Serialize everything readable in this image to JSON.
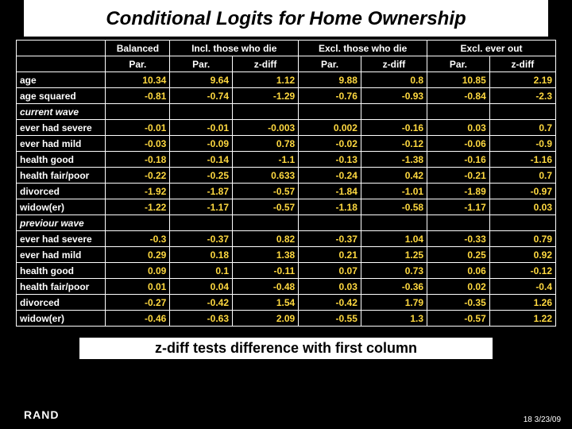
{
  "title": "Conditional Logits for Home Ownership",
  "subtitle": "z-diff tests difference with first column",
  "brand": "RAND",
  "footer": "18  3/23/09",
  "headers": {
    "topRow": [
      "Balanced",
      "Incl. those who die",
      "Excl. those who die",
      "Excl. ever out"
    ],
    "subRow": [
      "Par.",
      "Par.",
      "z-diff",
      "Par.",
      "z-diff",
      "Par.",
      "z-diff"
    ]
  },
  "rows": [
    {
      "label": "age",
      "italic": false,
      "vals": [
        "10.34",
        "9.64",
        "1.12",
        "9.88",
        "0.8",
        "10.85",
        "2.19"
      ]
    },
    {
      "label": "age squared",
      "italic": false,
      "vals": [
        "-0.81",
        "-0.74",
        "-1.29",
        "-0.76",
        "-0.93",
        "-0.84",
        "-2.3"
      ]
    },
    {
      "label": "current wave",
      "italic": true,
      "vals": [
        "",
        "",
        "",
        "",
        "",
        "",
        ""
      ]
    },
    {
      "label": "ever had severe",
      "italic": false,
      "vals": [
        "-0.01",
        "-0.01",
        "-0.003",
        "0.002",
        "-0.16",
        "0.03",
        "0.7"
      ]
    },
    {
      "label": "ever had mild",
      "italic": false,
      "vals": [
        "-0.03",
        "-0.09",
        "0.78",
        "-0.02",
        "-0.12",
        "-0.06",
        "-0.9"
      ]
    },
    {
      "label": "health good",
      "italic": false,
      "vals": [
        "-0.18",
        "-0.14",
        "-1.1",
        "-0.13",
        "-1.38",
        "-0.16",
        "-1.16"
      ]
    },
    {
      "label": "health fair/poor",
      "italic": false,
      "vals": [
        "-0.22",
        "-0.25",
        "0.633",
        "-0.24",
        "0.42",
        "-0.21",
        "0.7"
      ]
    },
    {
      "label": "divorced",
      "italic": false,
      "vals": [
        "-1.92",
        "-1.87",
        "-0.57",
        "-1.84",
        "-1.01",
        "-1.89",
        "-0.97"
      ]
    },
    {
      "label": "widow(er)",
      "italic": false,
      "vals": [
        "-1.22",
        "-1.17",
        "-0.57",
        "-1.18",
        "-0.58",
        "-1.17",
        "0.03"
      ]
    },
    {
      "label": "previour wave",
      "italic": true,
      "vals": [
        "",
        "",
        "",
        "",
        "",
        "",
        ""
      ]
    },
    {
      "label": "ever had severe",
      "italic": false,
      "vals": [
        "-0.3",
        "-0.37",
        "0.82",
        "-0.37",
        "1.04",
        "-0.33",
        "0.79"
      ]
    },
    {
      "label": "ever had mild",
      "italic": false,
      "vals": [
        "0.29",
        "0.18",
        "1.38",
        "0.21",
        "1.25",
        "0.25",
        "0.92"
      ]
    },
    {
      "label": "health good",
      "italic": false,
      "vals": [
        "0.09",
        "0.1",
        "-0.11",
        "0.07",
        "0.73",
        "0.06",
        "-0.12"
      ]
    },
    {
      "label": "health fair/poor",
      "italic": false,
      "vals": [
        "0.01",
        "0.04",
        "-0.48",
        "0.03",
        "-0.36",
        "0.02",
        "-0.4"
      ]
    },
    {
      "label": "divorced",
      "italic": false,
      "vals": [
        "-0.27",
        "-0.42",
        "1.54",
        "-0.42",
        "1.79",
        "-0.35",
        "1.26"
      ]
    },
    {
      "label": "widow(er)",
      "italic": false,
      "vals": [
        "-0.46",
        "-0.63",
        "2.09",
        "-0.55",
        "1.3",
        "-0.57",
        "1.22"
      ]
    }
  ],
  "style": {
    "bg": "#000000",
    "text_white": "#ffffff",
    "value_color": "#ffd940",
    "border": "#ffffff"
  }
}
